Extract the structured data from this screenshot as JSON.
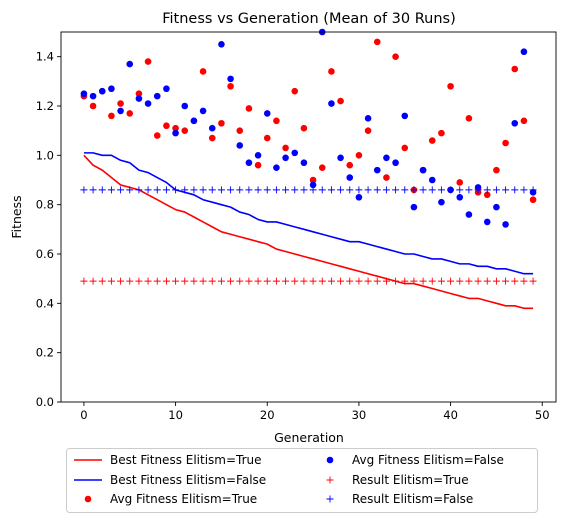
{
  "chart_data": {
    "type": "line",
    "title": "Fitness vs Generation (Mean of 30 Runs)",
    "xlabel": "Generation",
    "ylabel": "Fitness",
    "xlim": [
      -2.5,
      51.5
    ],
    "ylim": [
      0.0,
      1.5
    ],
    "xticks": [
      0,
      10,
      20,
      30,
      40,
      50
    ],
    "yticks": [
      0.0,
      0.2,
      0.4,
      0.6,
      0.8,
      1.0,
      1.2,
      1.4
    ],
    "xtick_labels": [
      "0",
      "10",
      "20",
      "30",
      "40",
      "50"
    ],
    "ytick_labels": [
      "0.0",
      "0.2",
      "0.4",
      "0.6",
      "0.8",
      "1.0",
      "1.2",
      "1.4"
    ],
    "grid": false,
    "legend_position": "below the plot, two columns",
    "colors": {
      "red": "#ff0000",
      "blue": "#0000ff"
    },
    "x": [
      0,
      1,
      2,
      3,
      4,
      5,
      6,
      7,
      8,
      9,
      10,
      11,
      12,
      13,
      14,
      15,
      16,
      17,
      18,
      19,
      20,
      21,
      22,
      23,
      24,
      25,
      26,
      27,
      28,
      29,
      30,
      31,
      32,
      33,
      34,
      35,
      36,
      37,
      38,
      39,
      40,
      41,
      42,
      43,
      44,
      45,
      46,
      47,
      48,
      49
    ],
    "series": [
      {
        "name": "Best Fitness Elitism=True",
        "kind": "line",
        "color": "#ff0000",
        "values": [
          1.0,
          0.96,
          0.94,
          0.91,
          0.88,
          0.87,
          0.86,
          0.84,
          0.82,
          0.8,
          0.78,
          0.77,
          0.75,
          0.73,
          0.71,
          0.69,
          0.68,
          0.67,
          0.66,
          0.65,
          0.64,
          0.62,
          0.61,
          0.6,
          0.59,
          0.58,
          0.57,
          0.56,
          0.55,
          0.54,
          0.53,
          0.52,
          0.51,
          0.5,
          0.49,
          0.48,
          0.48,
          0.47,
          0.46,
          0.45,
          0.44,
          0.43,
          0.42,
          0.42,
          0.41,
          0.4,
          0.39,
          0.39,
          0.38,
          0.38
        ]
      },
      {
        "name": "Best Fitness Elitism=False",
        "kind": "line",
        "color": "#0000ff",
        "values": [
          1.01,
          1.01,
          1.0,
          1.0,
          0.98,
          0.97,
          0.94,
          0.93,
          0.91,
          0.89,
          0.86,
          0.85,
          0.84,
          0.82,
          0.81,
          0.8,
          0.79,
          0.77,
          0.76,
          0.74,
          0.73,
          0.73,
          0.72,
          0.71,
          0.7,
          0.69,
          0.68,
          0.67,
          0.66,
          0.65,
          0.65,
          0.64,
          0.63,
          0.62,
          0.61,
          0.6,
          0.6,
          0.59,
          0.58,
          0.58,
          0.57,
          0.56,
          0.56,
          0.55,
          0.55,
          0.54,
          0.54,
          0.53,
          0.52,
          0.52
        ]
      },
      {
        "name": "Avg Fitness Elitism=True",
        "kind": "scatter",
        "color": "#ff0000",
        "values": [
          1.24,
          1.2,
          1.26,
          1.16,
          1.21,
          1.17,
          1.25,
          1.38,
          1.08,
          1.12,
          1.11,
          1.1,
          1.14,
          1.34,
          1.07,
          1.13,
          1.28,
          1.1,
          1.19,
          0.96,
          1.07,
          1.14,
          1.03,
          1.26,
          1.11,
          0.9,
          0.95,
          1.34,
          1.22,
          0.96,
          1.0,
          1.1,
          1.46,
          0.91,
          1.4,
          1.03,
          0.86,
          0.94,
          1.06,
          1.09,
          1.28,
          0.89,
          1.15,
          0.85,
          0.84,
          0.94,
          1.05,
          1.35,
          1.14,
          0.82
        ]
      },
      {
        "name": "Avg Fitness Elitism=False",
        "kind": "scatter",
        "color": "#0000ff",
        "values": [
          1.25,
          1.24,
          1.26,
          1.27,
          1.18,
          1.37,
          1.23,
          1.21,
          1.24,
          1.27,
          1.09,
          1.2,
          1.14,
          1.18,
          1.11,
          1.45,
          1.31,
          1.04,
          0.97,
          1.0,
          1.17,
          0.95,
          0.99,
          1.01,
          0.97,
          0.88,
          1.5,
          1.21,
          0.99,
          0.91,
          0.83,
          1.15,
          0.94,
          0.99,
          0.97,
          1.16,
          0.79,
          0.94,
          0.9,
          0.81,
          0.86,
          0.83,
          0.76,
          0.87,
          0.73,
          0.79,
          0.72,
          1.13,
          1.42,
          0.85
        ]
      },
      {
        "name": "Result Elitism=True",
        "kind": "plus-markers",
        "color": "#ff0000",
        "values": [
          0.49,
          0.49,
          0.49,
          0.49,
          0.49,
          0.49,
          0.49,
          0.49,
          0.49,
          0.49,
          0.49,
          0.49,
          0.49,
          0.49,
          0.49,
          0.49,
          0.49,
          0.49,
          0.49,
          0.49,
          0.49,
          0.49,
          0.49,
          0.49,
          0.49,
          0.49,
          0.49,
          0.49,
          0.49,
          0.49,
          0.49,
          0.49,
          0.49,
          0.49,
          0.49,
          0.49,
          0.49,
          0.49,
          0.49,
          0.49,
          0.49,
          0.49,
          0.49,
          0.49,
          0.49,
          0.49,
          0.49,
          0.49,
          0.49,
          0.49
        ]
      },
      {
        "name": "Result Elitism=False",
        "kind": "plus-markers",
        "color": "#0000ff",
        "values": [
          0.86,
          0.86,
          0.86,
          0.86,
          0.86,
          0.86,
          0.86,
          0.86,
          0.86,
          0.86,
          0.86,
          0.86,
          0.86,
          0.86,
          0.86,
          0.86,
          0.86,
          0.86,
          0.86,
          0.86,
          0.86,
          0.86,
          0.86,
          0.86,
          0.86,
          0.86,
          0.86,
          0.86,
          0.86,
          0.86,
          0.86,
          0.86,
          0.86,
          0.86,
          0.86,
          0.86,
          0.86,
          0.86,
          0.86,
          0.86,
          0.86,
          0.86,
          0.86,
          0.86,
          0.86,
          0.86,
          0.86,
          0.86,
          0.86,
          0.86
        ]
      }
    ],
    "legend": [
      {
        "label": "Best Fitness Elitism=True",
        "series": 0
      },
      {
        "label": "Avg Fitness Elitism=False",
        "series": 3
      },
      {
        "label": "Best Fitness Elitism=False",
        "series": 1
      },
      {
        "label": "Result Elitism=True",
        "series": 4
      },
      {
        "label": "Avg Fitness Elitism=True",
        "series": 2
      },
      {
        "label": "Result Elitism=False",
        "series": 5
      }
    ]
  }
}
